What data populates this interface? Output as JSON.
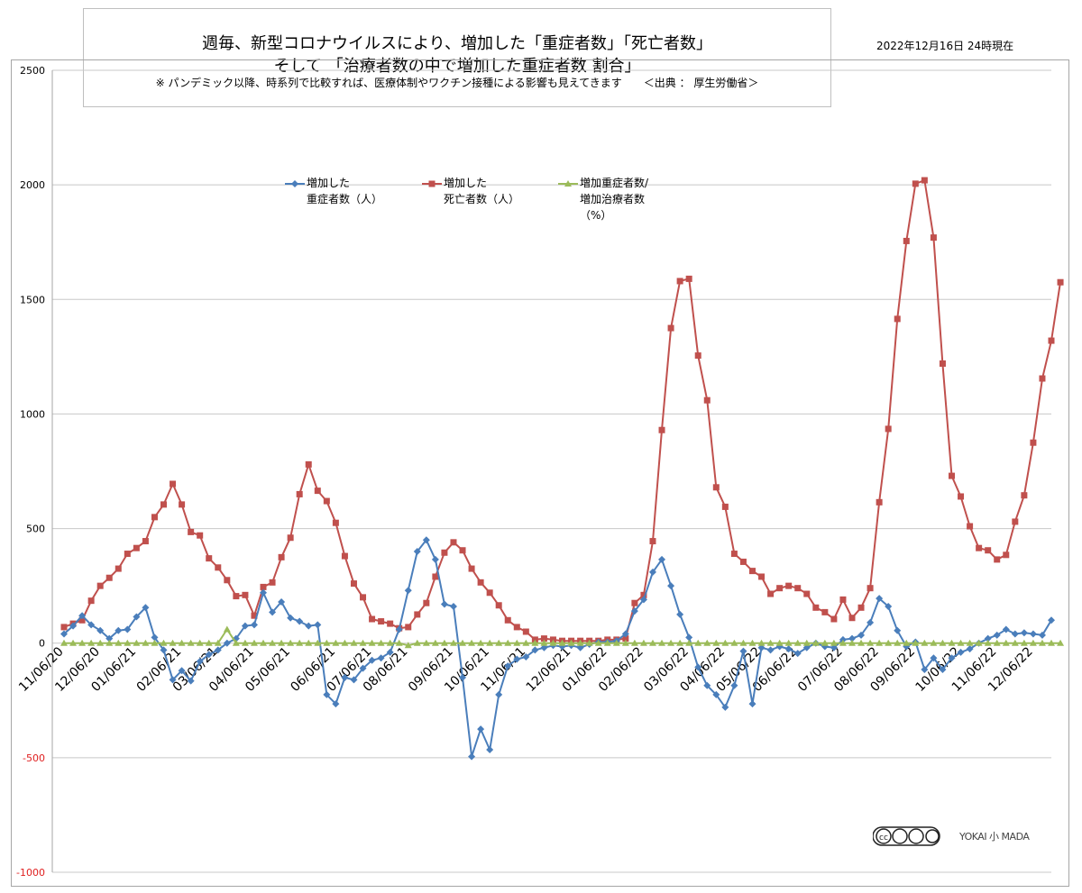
{
  "title": {
    "line1": "週毎、新型コロナウイルスにより、増加した「重症者数」「死亡者数」",
    "line2": "そして 「治療者数の中で増加した重症者数 割合」",
    "line3": "※ パンデミック以降、時系列で比較すれば、医療体制やワクチン接種による影響も見えてきます　　＜出典 ： 厚生労働省＞"
  },
  "date_stamp": "2022年12月16日 24時現在",
  "watermark": {
    "license": "cc by-nc-sa",
    "brand": "YOKAI 小 MADA"
  },
  "chart_data": {
    "type": "line",
    "ylim": [
      -1000,
      2500
    ],
    "yticks": [
      -1000,
      -500,
      0,
      500,
      1000,
      1500,
      2000,
      2500
    ],
    "ytick_labels": [
      "-1000",
      "-500",
      "0",
      "500",
      "1000",
      "1500",
      "2000",
      "2500"
    ],
    "negative_tick_color": "#e02020",
    "grid": true,
    "legend_position": "top-center",
    "x_labels": [
      "11/06/20",
      "12/06/20",
      "01/06/21",
      "02/06/21",
      "03/06/21",
      "04/06/21",
      "05/06/21",
      "06/06/21",
      "07/06/21",
      "08/06/21",
      "09/06/21",
      "10/06/21",
      "11/06/21",
      "12/06/21",
      "01/06/22",
      "02/06/22",
      "03/06/22",
      "04/06/22",
      "05/06/22",
      "06/06/22",
      "07/06/22",
      "08/06/22",
      "09/06/22",
      "10/06/22",
      "11/06/22",
      "12/06/22"
    ],
    "x_label_index": [
      0,
      4,
      8,
      13,
      17,
      21,
      25,
      30,
      34,
      38,
      43,
      47,
      51,
      56,
      60,
      64,
      69,
      73,
      77,
      81,
      86,
      90,
      94,
      99,
      103,
      107
    ],
    "series": [
      {
        "name": "増加した\n重症者数（人）",
        "color": "#4a7ebb",
        "marker": "diamond",
        "values": [
          40,
          75,
          120,
          80,
          55,
          20,
          55,
          60,
          115,
          155,
          25,
          -30,
          -160,
          -120,
          -165,
          -80,
          -50,
          -30,
          0,
          20,
          75,
          80,
          220,
          135,
          180,
          110,
          95,
          75,
          80,
          -225,
          -265,
          -150,
          -160,
          -110,
          -75,
          -65,
          -40,
          60,
          230,
          400,
          450,
          365,
          170,
          160,
          -150,
          -495,
          -375,
          -465,
          -225,
          -100,
          -70,
          -60,
          -30,
          -20,
          -10,
          -15,
          -10,
          -20,
          -5,
          5,
          5,
          10,
          40,
          140,
          190,
          310,
          365,
          250,
          125,
          25,
          -105,
          -185,
          -225,
          -280,
          -185,
          -35,
          -265,
          -20,
          -30,
          -15,
          -25,
          -45,
          -20,
          0,
          -15,
          -20,
          15,
          20,
          35,
          90,
          195,
          160,
          55,
          -15,
          5,
          -115,
          -65,
          -115,
          -65,
          -40,
          -25,
          0,
          20,
          35,
          60,
          40,
          45,
          40,
          35,
          100
        ]
      },
      {
        "name": "増加した\n死亡者数（人）",
        "color": "#c0504d",
        "marker": "square",
        "values": [
          70,
          85,
          100,
          185,
          250,
          285,
          325,
          390,
          415,
          445,
          550,
          605,
          695,
          605,
          485,
          470,
          370,
          330,
          275,
          205,
          210,
          120,
          245,
          265,
          375,
          460,
          650,
          780,
          665,
          620,
          525,
          380,
          260,
          200,
          105,
          95,
          85,
          65,
          70,
          125,
          175,
          290,
          395,
          440,
          405,
          325,
          265,
          220,
          165,
          100,
          70,
          50,
          15,
          20,
          15,
          10,
          10,
          10,
          10,
          10,
          15,
          15,
          20,
          175,
          210,
          445,
          930,
          1375,
          1580,
          1590,
          1255,
          1060,
          680,
          595,
          390,
          355,
          315,
          290,
          215,
          240,
          250,
          240,
          215,
          155,
          135,
          105,
          190,
          110,
          155,
          240,
          615,
          935,
          1415,
          1755,
          2005,
          2020,
          1770,
          1220,
          730,
          640,
          510,
          415,
          405,
          365,
          385,
          530,
          645,
          875,
          1155,
          1320,
          1575
        ]
      },
      {
        "name": "増加重症者数/\n増加治療者数\n（%）",
        "color": "#9bbb59",
        "marker": "triangle",
        "values": [
          0,
          0,
          0,
          0,
          0,
          0,
          0,
          0,
          0,
          0,
          0,
          0,
          0,
          0,
          0,
          0,
          0,
          0,
          60,
          0,
          0,
          0,
          0,
          0,
          0,
          0,
          0,
          0,
          0,
          0,
          0,
          0,
          0,
          0,
          0,
          0,
          0,
          0,
          -10,
          0,
          0,
          0,
          0,
          0,
          0,
          0,
          0,
          0,
          0,
          0,
          0,
          0,
          0,
          0,
          0,
          0,
          0,
          0,
          0,
          0,
          0,
          0,
          0,
          0,
          0,
          0,
          0,
          0,
          0,
          0,
          0,
          0,
          0,
          0,
          0,
          0,
          0,
          0,
          0,
          0,
          0,
          0,
          0,
          0,
          0,
          0,
          0,
          0,
          0,
          0,
          0,
          0,
          0,
          0,
          0,
          0,
          0,
          0,
          0,
          0,
          0,
          0,
          0,
          0,
          0,
          0,
          0,
          0,
          0,
          0,
          0
        ]
      }
    ]
  }
}
